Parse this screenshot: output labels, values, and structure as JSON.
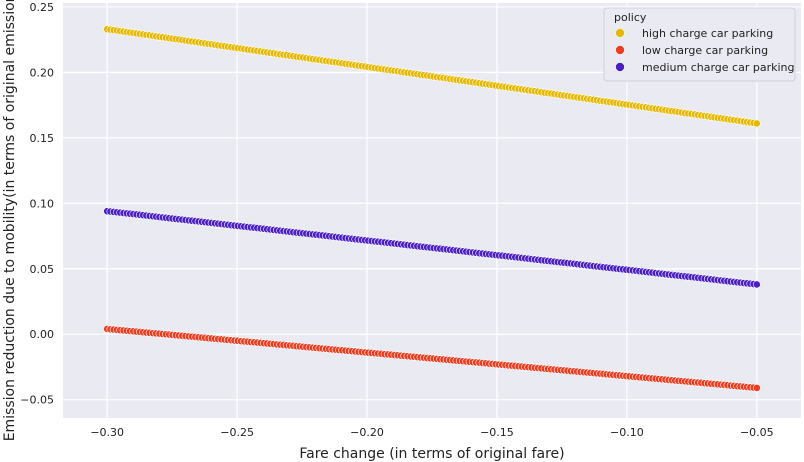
{
  "chart_data": {
    "type": "scatter",
    "xlabel": "Fare change (in terms of original fare)",
    "ylabel": "Emission reduction due to mobility(in terms of original emissions)",
    "xlim": [
      -0.317,
      -0.033
    ],
    "ylim": [
      -0.064,
      0.253
    ],
    "xticks": [
      -0.3,
      -0.25,
      -0.2,
      -0.15,
      -0.1,
      -0.05
    ],
    "xtick_labels": [
      "−0.30",
      "−0.25",
      "−0.20",
      "−0.15",
      "−0.10",
      "−0.05"
    ],
    "yticks": [
      -0.05,
      0.0,
      0.05,
      0.1,
      0.15,
      0.2,
      0.25
    ],
    "ytick_labels": [
      "−0.05",
      "0.00",
      "0.05",
      "0.10",
      "0.15",
      "0.20",
      "0.25"
    ],
    "grid": true,
    "legend": {
      "title": "policy",
      "placement": "top-right"
    },
    "x_range": {
      "start": -0.3,
      "end": -0.05,
      "points": 200
    },
    "series": [
      {
        "name": "high charge car parking",
        "color": "#e6b800",
        "x_start": -0.3,
        "y_start": 0.233,
        "x_end": -0.05,
        "y_end": 0.161
      },
      {
        "name": "low charge car parking",
        "color": "#f23a1c",
        "x_start": -0.3,
        "y_start": 0.004,
        "x_end": -0.05,
        "y_end": -0.041
      },
      {
        "name": "medium charge car parking",
        "color": "#4a1dc8",
        "x_start": -0.3,
        "y_start": 0.094,
        "x_end": -0.05,
        "y_end": 0.038
      }
    ]
  }
}
